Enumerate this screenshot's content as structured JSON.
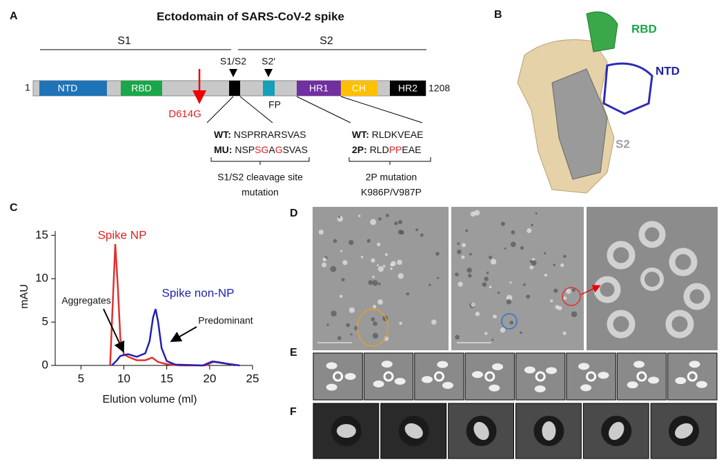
{
  "panel_a": {
    "label": "A",
    "title": "Ectodomain of SARS-CoV-2 spike",
    "s1": "S1",
    "s2": "S2",
    "start": "1",
    "end": "1208",
    "domains": [
      "NTD",
      "RBD",
      "HR1",
      "CH",
      "HR2"
    ],
    "s1s2": "S1/S2",
    "s2prime": "S2′",
    "fp": "FP",
    "mutation": "D614G",
    "cleavage": {
      "wt_label": "WT:",
      "wt_seq": "NSPRRARSVAS",
      "mu_label": "MU:",
      "mu_parts": [
        "NSP",
        "SG",
        "A",
        "G",
        "SVAS"
      ],
      "caption": [
        "S1/S2 cleavage site",
        "mutation"
      ]
    },
    "proline": {
      "wt_label": "WT:",
      "wt_seq": "RLDKVEAE",
      "p_label": "2P:",
      "p_parts": [
        "RLD",
        "PP",
        "EAE"
      ],
      "caption": [
        "2P mutation",
        "K986P/V987P"
      ]
    }
  },
  "panel_b": {
    "label": "B",
    "rbd": "RBD",
    "ntd": "NTD",
    "s2": "S2"
  },
  "panel_c": {
    "label": "C",
    "chart_data": {
      "type": "line",
      "y_label": "mAU",
      "x_label": "Elution volume (ml)",
      "xlim": [
        2,
        25
      ],
      "xticks": [
        5,
        10,
        15,
        20,
        25
      ],
      "ylim": [
        0,
        15.5
      ],
      "yticks": [
        0,
        5,
        10,
        15
      ],
      "series": [
        {
          "name": "Spike NP",
          "color": "#e03030",
          "x": [
            8.4,
            8.7,
            9.0,
            9.3,
            9.6,
            10.0,
            10.5,
            11.5,
            12.5,
            13.3,
            14.0,
            15.0,
            16.5,
            19.5,
            20.5,
            21.5,
            23.0
          ],
          "values": [
            0,
            7,
            14,
            9,
            3,
            1.3,
            1.0,
            0.6,
            0.6,
            0.9,
            0.4,
            0.15,
            0,
            0,
            0.45,
            0.3,
            0
          ]
        },
        {
          "name": "Spike non-NP",
          "color": "#2020b0",
          "x": [
            8.6,
            9.2,
            9.6,
            10.5,
            11.5,
            12.5,
            13.0,
            13.4,
            13.7,
            14.0,
            14.4,
            15.0,
            16.0,
            19.2,
            20.3,
            22.0,
            23.5
          ],
          "values": [
            0,
            0.6,
            1.1,
            1.3,
            1.0,
            1.4,
            2.8,
            5.5,
            6.5,
            5.0,
            2.0,
            0.5,
            0.1,
            0,
            0.45,
            0.2,
            0
          ]
        }
      ],
      "annotations": [
        "Aggregates",
        "Predominant"
      ]
    }
  },
  "panel_d": {
    "label": "D"
  },
  "panel_e": {
    "label": "E"
  },
  "panel_f": {
    "label": "F"
  }
}
